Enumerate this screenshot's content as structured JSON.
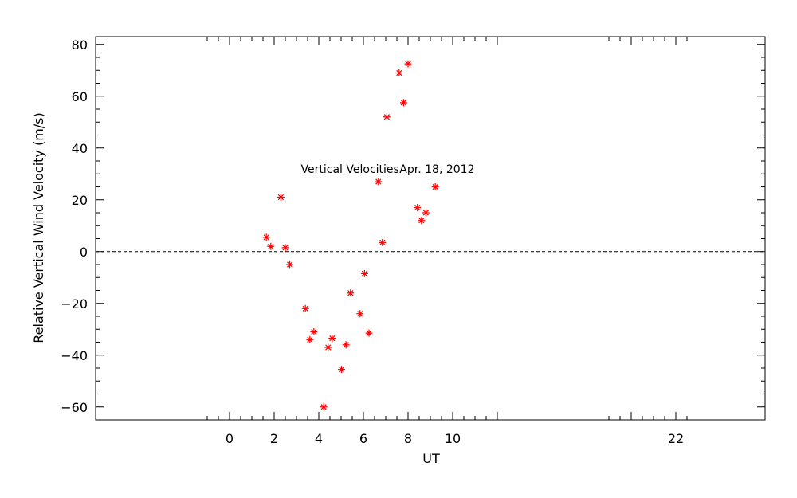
{
  "chart_data": {
    "type": "scatter",
    "xlabel": "UT",
    "ylabel": "Relative Vertical Wind Velocity (m/s)",
    "xlim": [
      -25.0,
      12.0
    ],
    "ylim": [
      -65,
      83
    ],
    "x_ticks": [
      -26,
      -24,
      -22,
      -20,
      -18,
      -16,
      -14,
      -12,
      -10,
      -8,
      -6,
      -4,
      -2,
      0,
      2,
      4,
      6,
      8,
      10,
      12
    ],
    "x_tick_labels": [
      "22",
      "0",
      "2",
      "4",
      "6",
      "8",
      "10"
    ],
    "x_tick_label_positions": [
      -24,
      0,
      2,
      4,
      6,
      8,
      10
    ],
    "x_minor_ticks": [
      -24.5,
      -23.5,
      -22.5,
      -21.5,
      -20.5,
      -19.5
    ],
    "y_ticks": [
      -60,
      -40,
      -20,
      0,
      20,
      40,
      60,
      80
    ],
    "y_tick_labels": [
      "−60",
      "−40",
      "−20",
      "0",
      "20",
      "40",
      "60",
      "80"
    ],
    "zero_line": true,
    "marker": "asterisk",
    "marker_color": "#ff0000",
    "axis_color": "#000000",
    "annotations": [
      {
        "text": "Vertical Velocities",
        "x": 5.4,
        "y": 32
      },
      {
        "text": "Apr. 18, 2012",
        "x": 9.3,
        "y": 32
      }
    ],
    "series": [
      {
        "x": [
          1.65,
          1.85,
          2.3,
          2.5,
          2.7,
          3.4,
          3.6,
          3.78,
          4.22,
          4.42,
          4.6,
          5.02,
          5.22,
          5.42,
          5.85,
          6.05,
          6.25,
          6.67,
          6.85,
          7.05,
          7.6,
          7.8,
          8.0,
          8.42,
          8.6,
          8.8,
          9.22
        ],
        "y": [
          5.5,
          2,
          21,
          1.5,
          -5,
          -22,
          -34,
          -31,
          -60,
          -37,
          -33.5,
          -45.5,
          -36,
          -16,
          -24,
          -8.5,
          -31.5,
          27,
          3.5,
          52,
          69,
          57.5,
          72.5,
          17,
          12,
          15,
          25
        ]
      }
    ]
  }
}
